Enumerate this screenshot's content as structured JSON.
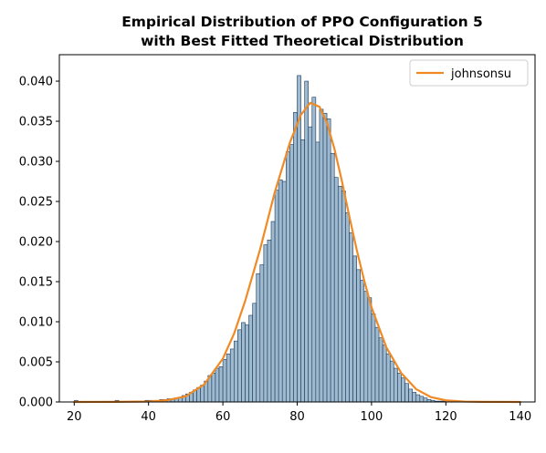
{
  "chart_data": {
    "type": "histogram",
    "title_lines": [
      "Empirical Distribution of PPO Configuration 5",
      "with Best Fitted Theoretical Distribution"
    ],
    "xlabel": "",
    "ylabel": "",
    "xlim": [
      16,
      144
    ],
    "ylim": [
      0,
      0.0433
    ],
    "x_ticks": [
      20,
      40,
      60,
      80,
      100,
      120,
      140
    ],
    "x_tick_labels": [
      "20",
      "40",
      "60",
      "80",
      "100",
      "120",
      "140"
    ],
    "y_ticks": [
      0.0,
      0.005,
      0.01,
      0.015,
      0.02,
      0.025,
      0.03,
      0.035,
      0.04
    ],
    "y_tick_labels": [
      "0.000",
      "0.005",
      "0.010",
      "0.015",
      "0.020",
      "0.025",
      "0.030",
      "0.035",
      "0.040"
    ],
    "legend": {
      "position": "top-right",
      "entries": [
        "johnsonsu"
      ]
    },
    "grid": false,
    "colors": {
      "bar_fill": "#9fb9cf",
      "bar_edge": "#1a3a5c",
      "fit_line": "#f08a24"
    },
    "histogram": {
      "bin_start": 20,
      "bin_width": 1,
      "densities": [
        0.0002,
        0,
        0,
        0,
        0,
        0,
        0,
        0,
        0,
        0,
        0,
        0.0002,
        0,
        0,
        0,
        0,
        0,
        0,
        0,
        0.0002,
        0.0002,
        0.0002,
        0,
        0.0003,
        0.0003,
        0.0004,
        0.0004,
        0.0005,
        0.0006,
        0.0008,
        0.001,
        0.0012,
        0.0015,
        0.0018,
        0.0021,
        0.0026,
        0.0033,
        0.0036,
        0.0042,
        0.0044,
        0.0053,
        0.006,
        0.0066,
        0.0076,
        0.009,
        0.0099,
        0.0096,
        0.0108,
        0.0123,
        0.016,
        0.0171,
        0.0196,
        0.0202,
        0.0225,
        0.0264,
        0.0277,
        0.0275,
        0.0312,
        0.0321,
        0.0361,
        0.0407,
        0.0327,
        0.04,
        0.0343,
        0.038,
        0.0324,
        0.0365,
        0.036,
        0.0353,
        0.031,
        0.028,
        0.0269,
        0.0263,
        0.0236,
        0.0211,
        0.0182,
        0.0165,
        0.0152,
        0.0138,
        0.013,
        0.011,
        0.0093,
        0.008,
        0.0071,
        0.006,
        0.0051,
        0.0042,
        0.0036,
        0.003,
        0.0023,
        0.0016,
        0.0012,
        0.0009,
        0.0007,
        0.0005,
        0.0003,
        0.0002,
        0.0001,
        0.0001,
        0.0001
      ]
    },
    "fit": {
      "name": "johnsonsu",
      "x": [
        20,
        30,
        40,
        45,
        50,
        55,
        60,
        63,
        66,
        70,
        74,
        78,
        81,
        83.5,
        86,
        88,
        90,
        92,
        94,
        96,
        98,
        100,
        104,
        108,
        112,
        116,
        120,
        125,
        130,
        140
      ],
      "y": [
        0.0,
        1e-05,
        6e-05,
        0.00022,
        0.0007,
        0.0022,
        0.0054,
        0.0085,
        0.0126,
        0.019,
        0.0262,
        0.0323,
        0.0358,
        0.0373,
        0.0368,
        0.0348,
        0.0316,
        0.0276,
        0.0232,
        0.019,
        0.0152,
        0.0118,
        0.0068,
        0.0036,
        0.0016,
        0.0006,
        0.0002,
        5e-05,
        1e-05,
        0.0
      ]
    }
  }
}
